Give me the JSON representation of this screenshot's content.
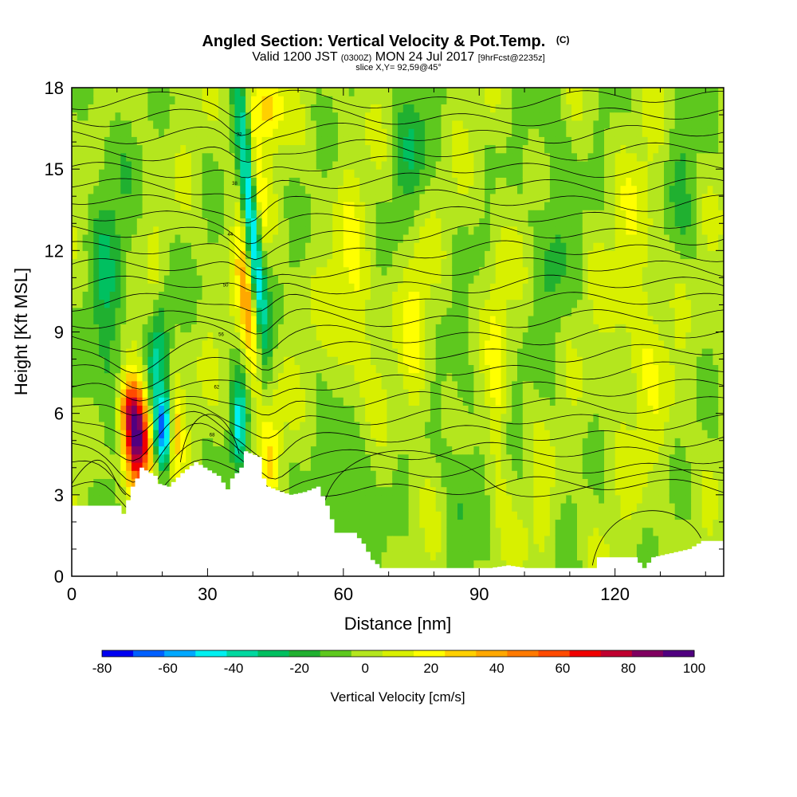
{
  "header": {
    "title": "Angled Section: Vertical Velocity & Pot.Temp.",
    "title_tag": "(C)",
    "line2_a": "Valid 1200 JST",
    "line2_b": "(0300Z)",
    "line2_c": "MON 24 Jul 2017",
    "line2_d": "[9hrFcst@2235z]",
    "line3": "slice X,Y= 92,59@45°"
  },
  "chart_data": {
    "type": "heatmap",
    "xlabel": "Distance [nm]",
    "ylabel": "Height [Kft MSL]",
    "xlim": [
      0,
      144
    ],
    "ylim": [
      0,
      18
    ],
    "x_ticks": [
      "0",
      "30",
      "60",
      "90",
      "120"
    ],
    "y_ticks": [
      "0",
      "3",
      "6",
      "9",
      "12",
      "15",
      "18"
    ],
    "colorbar": {
      "label": "Vertical Velocity [cm/s]",
      "tick_labels": [
        "-80",
        "-60",
        "-40",
        "-20",
        "0",
        "20",
        "40",
        "60",
        "80",
        "100"
      ],
      "bounds": [
        -80,
        -70,
        -60,
        -50,
        -40,
        -30,
        -20,
        -10,
        0,
        10,
        20,
        30,
        40,
        50,
        60,
        70,
        80,
        90,
        100
      ],
      "colors": [
        "#0000f0",
        "#0060ff",
        "#00a8ff",
        "#00f0f0",
        "#00d8a0",
        "#00c060",
        "#20b030",
        "#5ec81e",
        "#b4e61e",
        "#d8f000",
        "#ffff00",
        "#ffd000",
        "#ffa800",
        "#ff7a00",
        "#ff4a00",
        "#f00000",
        "#c00030",
        "#800060",
        "#500080"
      ]
    },
    "features": [
      {
        "name": "updraft",
        "x": 15,
        "y_range": [
          3.5,
          7
        ],
        "value": 95
      },
      {
        "name": "downdraft",
        "x": 20,
        "y_range": [
          4,
          7
        ],
        "value": -55
      },
      {
        "name": "downdraft",
        "x": 41,
        "y_range": [
          7,
          17
        ],
        "value": -45
      },
      {
        "name": "updraft",
        "x": 40,
        "y_range": [
          9,
          18
        ],
        "value": 40
      },
      {
        "name": "downdraft",
        "x": 37,
        "y_range": [
          4.5,
          7
        ],
        "value": -35
      }
    ],
    "contours": {
      "field": "potential temperature",
      "labels": [
        "74",
        "68",
        "62",
        "56",
        "50",
        "44",
        "38",
        "32",
        "26"
      ]
    },
    "colors": {
      "terrain": "#ffffff",
      "contour": "#000000",
      "background": "#ffffff"
    }
  }
}
